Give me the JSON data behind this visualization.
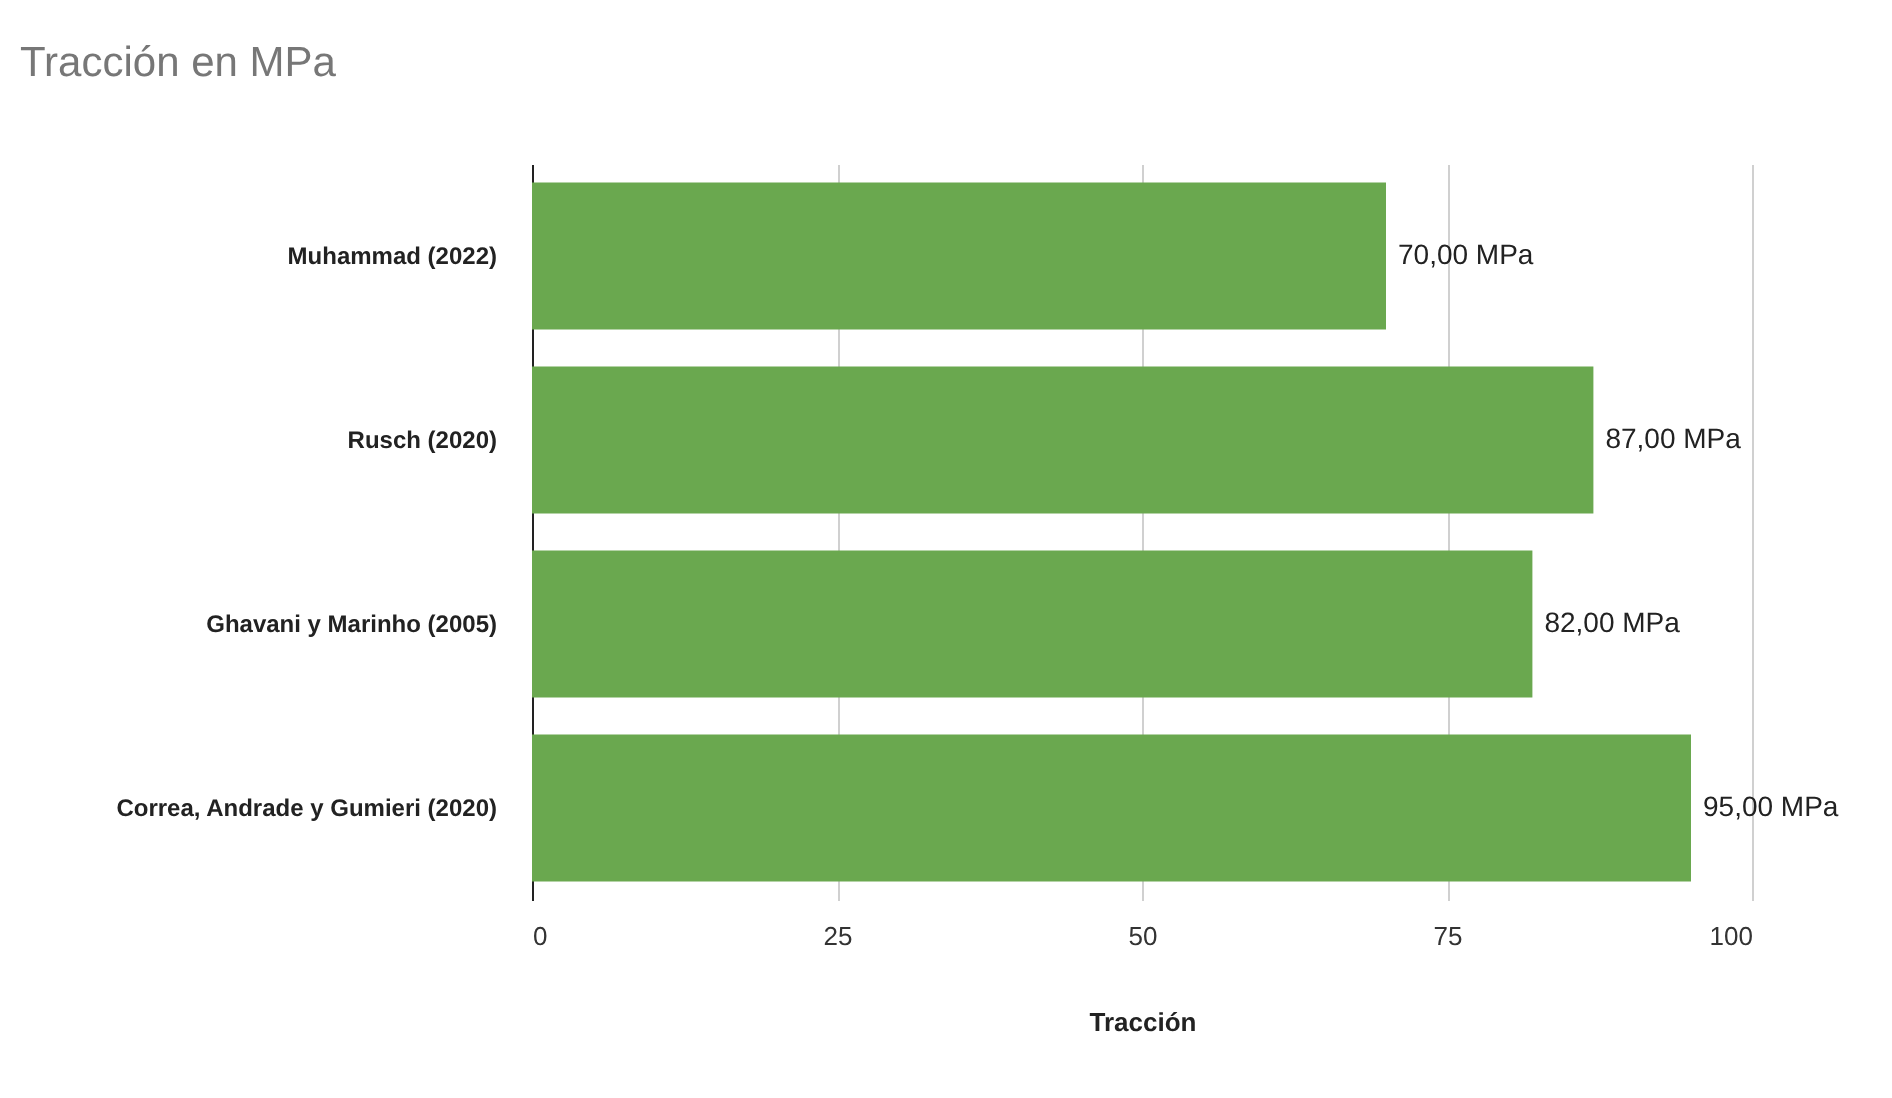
{
  "chart_data": {
    "type": "bar",
    "orientation": "horizontal",
    "title": "Tracción en MPa",
    "xlabel": "Tracción",
    "categories": [
      "Muhammad (2022)",
      "Rusch (2020)",
      "Ghavani y Marinho (2005)",
      "Correa, Andrade y Gumieri (2020)"
    ],
    "values": [
      70,
      87,
      82,
      95
    ],
    "value_labels": [
      "70,00 MPa",
      "87,00 MPa",
      "82,00 MPa",
      "95,00 MPa"
    ],
    "color": "#6aa84f",
    "xlim": [
      0,
      100
    ],
    "xticks": [
      0,
      25,
      50,
      75,
      100
    ],
    "grid": "x"
  }
}
